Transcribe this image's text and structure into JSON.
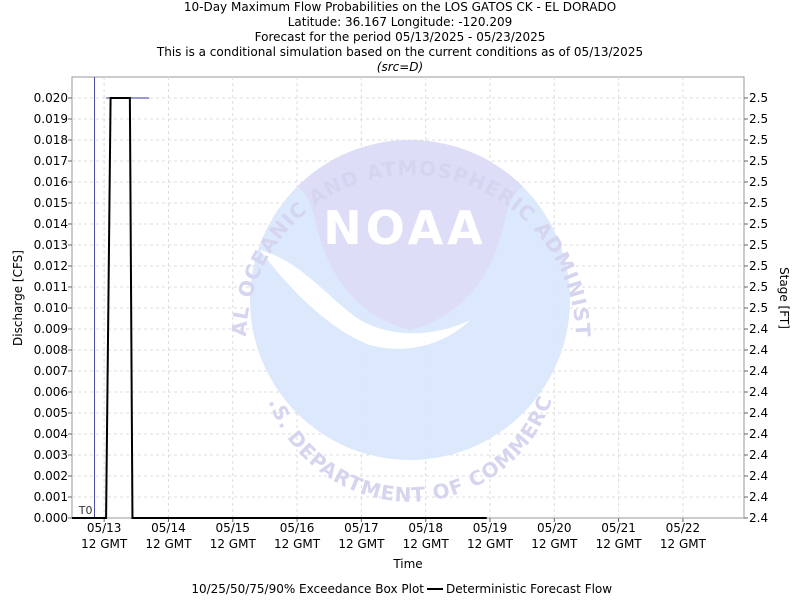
{
  "chart_data": {
    "type": "line",
    "title": "10-Day Maximum Flow Probabilities on the LOS GATOS CK - EL DORADO",
    "subtitle_lines": [
      "Latitude: 36.167 Longitude: -120.209",
      "Forecast for the period 05/13/2025 - 05/23/2025",
      "This is a conditional simulation based on the current conditions as of 05/13/2025"
    ],
    "source_note": "(src=D)",
    "xlabel": "Time",
    "ylabel": "Discharge [CFS]",
    "y2label": "Stage [FT]",
    "x_tick_labels": [
      [
        "05/13",
        "12 GMT"
      ],
      [
        "05/14",
        "12 GMT"
      ],
      [
        "05/15",
        "12 GMT"
      ],
      [
        "05/16",
        "12 GMT"
      ],
      [
        "05/17",
        "12 GMT"
      ],
      [
        "05/18",
        "12 GMT"
      ],
      [
        "05/19",
        "12 GMT"
      ],
      [
        "05/20",
        "12 GMT"
      ],
      [
        "05/21",
        "12 GMT"
      ],
      [
        "05/22",
        "12 GMT"
      ]
    ],
    "x_range_days": [
      -0.5,
      9.95
    ],
    "ylim": [
      0,
      0.021
    ],
    "y_ticks": [
      "0.000",
      "0.001",
      "0.002",
      "0.003",
      "0.004",
      "0.005",
      "0.006",
      "0.007",
      "0.008",
      "0.009",
      "0.010",
      "0.011",
      "0.012",
      "0.013",
      "0.014",
      "0.015",
      "0.016",
      "0.017",
      "0.018",
      "0.019",
      "0.020"
    ],
    "y2_ticks": [
      "2.4",
      "2.4",
      "2.4",
      "2.4",
      "2.4",
      "2.4",
      "2.4",
      "2.4",
      "2.4",
      "2.4",
      "2.5",
      "2.5",
      "2.5",
      "2.5",
      "2.5",
      "2.5",
      "2.5",
      "2.5",
      "2.5",
      "2.5",
      "2.5"
    ],
    "grid": true,
    "t0_label": "T0",
    "t0_x_days": -0.15,
    "series": [
      {
        "name": "Deterministic Forecast Flow",
        "color": "#000000",
        "points": [
          [
            -0.5,
            0
          ],
          [
            0.03,
            0
          ],
          [
            0.1,
            0.02
          ],
          [
            0.4,
            0.02
          ],
          [
            0.44,
            0
          ],
          [
            5.95,
            0
          ]
        ]
      }
    ],
    "reference_line": {
      "x_start_days": 0.03,
      "x_end_days": 0.7,
      "y": 0.02,
      "color": "#3333aa"
    },
    "legend": {
      "placement": "bottom",
      "box_label": "10/25/50/75/90% Exceedance Box Plot",
      "line_label": "Deterministic Forecast Flow"
    },
    "watermark": {
      "text_top": "NATIONAL OCEANIC AND ATMOSPHERIC ADMINISTRATION",
      "text_bottom": "U.S. DEPARTMENT OF COMMERCE",
      "logo_text": "NOAA"
    }
  }
}
